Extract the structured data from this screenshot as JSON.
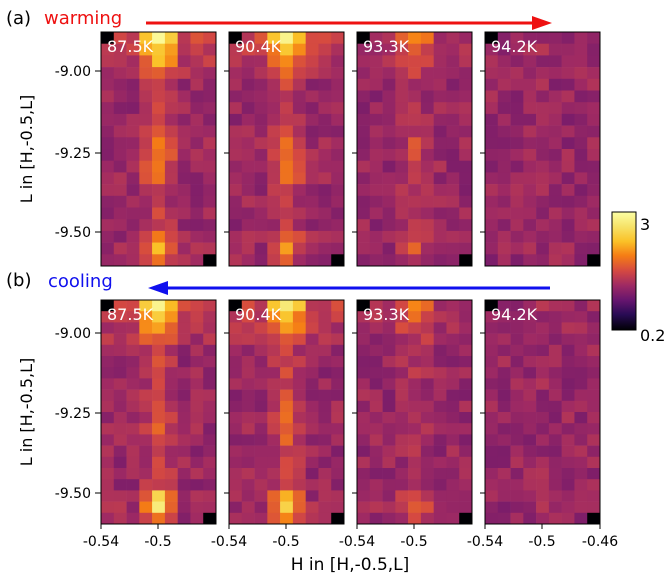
{
  "chart_data": {
    "type": "heatmap",
    "colormap": "inferno",
    "colorbar": {
      "min": 0.2,
      "max": 3,
      "min_label": "0.2",
      "max_label": "3"
    },
    "xlabel": "H in [H,-0.5,L]",
    "ylabel": "L in [H,-0.5,L]",
    "xlim": [
      -0.54,
      -0.46
    ],
    "ylim": [
      -9.6,
      -8.95
    ],
    "x_ticks": [
      "-0.54",
      "-0.5",
      "-0.54",
      "-0.5",
      "-0.54",
      "-0.5",
      "-0.54",
      "-0.5",
      "-0.46"
    ],
    "y_ticks": [
      "-9.00",
      "-9.25",
      "-9.50"
    ],
    "rows": [
      {
        "label": "(a)",
        "direction_text": "warming",
        "direction_color": "#ee1111",
        "arrow": "right",
        "panels": [
          {
            "temp": "87.5K",
            "intensity": 1.0,
            "bottom_peak": "weak"
          },
          {
            "temp": "90.4K",
            "intensity": 0.92,
            "bottom_peak": "weak"
          },
          {
            "temp": "93.3K",
            "intensity": 0.45,
            "bottom_peak": "weak"
          },
          {
            "temp": "94.2K",
            "intensity": 0.05,
            "bottom_peak": "weak"
          }
        ]
      },
      {
        "label": "(b)",
        "direction_text": "cooling",
        "direction_color": "#1010ee",
        "arrow": "left",
        "panels": [
          {
            "temp": "87.5K",
            "intensity": 1.0,
            "bottom_peak": "strong"
          },
          {
            "temp": "90.4K",
            "intensity": 0.95,
            "bottom_peak": "strong"
          },
          {
            "temp": "93.3K",
            "intensity": 0.42,
            "bottom_peak": "strong"
          },
          {
            "temp": "94.2K",
            "intensity": 0.05,
            "bottom_peak": "strong"
          }
        ]
      }
    ]
  }
}
